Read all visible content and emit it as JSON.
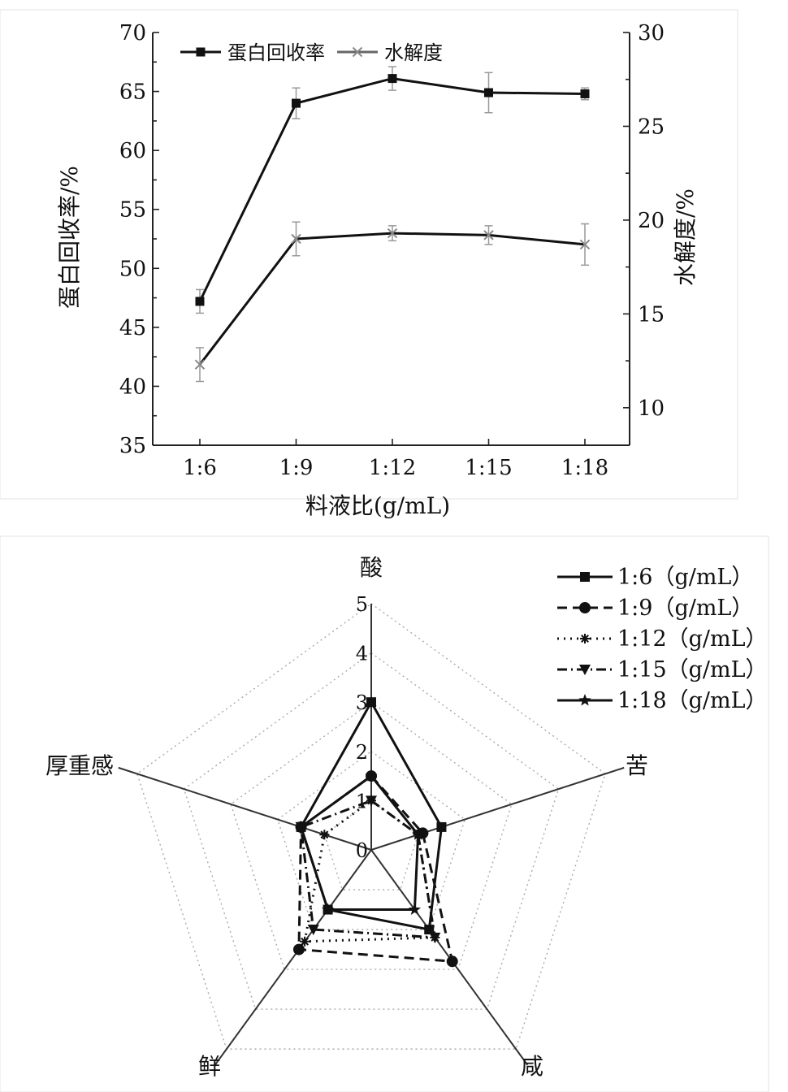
{
  "chart_data": [
    {
      "type": "line",
      "xlabel": "料液比(g/mL)",
      "ylabel": "蛋白回收率/%",
      "y2label": "水解度/%",
      "categories": [
        "1:6",
        "1:9",
        "1:12",
        "1:15",
        "1:18"
      ],
      "ylim": [
        35,
        70
      ],
      "yticks": [
        35,
        40,
        45,
        50,
        55,
        60,
        65,
        70
      ],
      "y2lim": [
        8,
        30
      ],
      "y2ticks": [
        10,
        15,
        20,
        25,
        30
      ],
      "legend_position": "top-left",
      "grid": false,
      "series": [
        {
          "name": "蛋白回收率",
          "axis": "left",
          "marker": "square",
          "values": [
            47.2,
            64.0,
            66.1,
            64.9,
            64.8
          ],
          "errors": [
            1.0,
            1.3,
            1.0,
            1.7,
            0.5
          ]
        },
        {
          "name": "水解度",
          "axis": "right",
          "marker": "x",
          "values": [
            12.3,
            19.0,
            19.3,
            19.2,
            18.7
          ],
          "errors": [
            0.9,
            0.9,
            0.4,
            0.5,
            1.1
          ]
        }
      ]
    },
    {
      "type": "radar",
      "axes": [
        "酸",
        "苦",
        "咸",
        "鲜",
        "厚重感"
      ],
      "scale_max": 5,
      "scale_labels": [
        "0",
        "1",
        "2",
        "3",
        "4",
        "5"
      ],
      "legend_position": "top-right",
      "series": [
        {
          "name": "1:6（g/mL）",
          "marker": "square",
          "dash": "solid",
          "values": [
            3.0,
            1.5,
            2.0,
            1.5,
            1.5
          ]
        },
        {
          "name": "1:9（g/mL）",
          "marker": "circle",
          "dash": "dash",
          "values": [
            1.5,
            1.1,
            2.8,
            2.5,
            1.5
          ]
        },
        {
          "name": "1:12（g/mL）",
          "marker": "asterisk",
          "dash": "dot",
          "values": [
            1.0,
            1.0,
            2.2,
            2.3,
            1.0
          ]
        },
        {
          "name": "1:15（g/mL）",
          "marker": "triangle",
          "dash": "dashdot",
          "values": [
            1.0,
            1.0,
            2.2,
            2.0,
            1.5
          ]
        },
        {
          "name": "1:18（g/mL）",
          "marker": "star",
          "dash": "solid",
          "values": [
            1.5,
            1.0,
            1.5,
            1.5,
            1.5
          ]
        }
      ]
    }
  ]
}
